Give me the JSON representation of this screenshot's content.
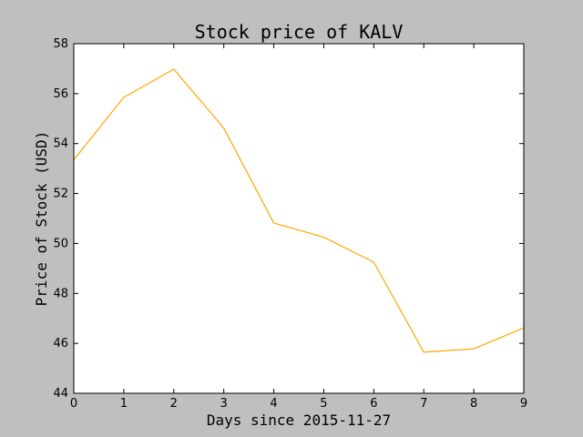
{
  "chart_data": {
    "type": "line",
    "title": "Stock price of KALV",
    "xlabel": "Days since 2015-11-27",
    "ylabel": "Price of Stock (USD)",
    "x": [
      0,
      1,
      2,
      3,
      4,
      5,
      6,
      7,
      8,
      9
    ],
    "series": [
      {
        "values": [
          53.35,
          55.85,
          56.98,
          54.62,
          50.82,
          50.25,
          49.25,
          45.65,
          45.78,
          46.62
        ],
        "color": "#ffa500"
      }
    ],
    "xlim": [
      0,
      9
    ],
    "ylim": [
      44,
      58
    ],
    "xticks": [
      "0",
      "1",
      "2",
      "3",
      "4",
      "5",
      "6",
      "7",
      "8",
      "9"
    ],
    "yticks": [
      "44",
      "46",
      "48",
      "50",
      "52",
      "54",
      "56",
      "58"
    ],
    "grid": false,
    "legend": "none"
  },
  "colors": {
    "background": "#bfbfbf",
    "plot_area": "#ffffff",
    "axes": "#000000",
    "line": "#ffa500"
  }
}
